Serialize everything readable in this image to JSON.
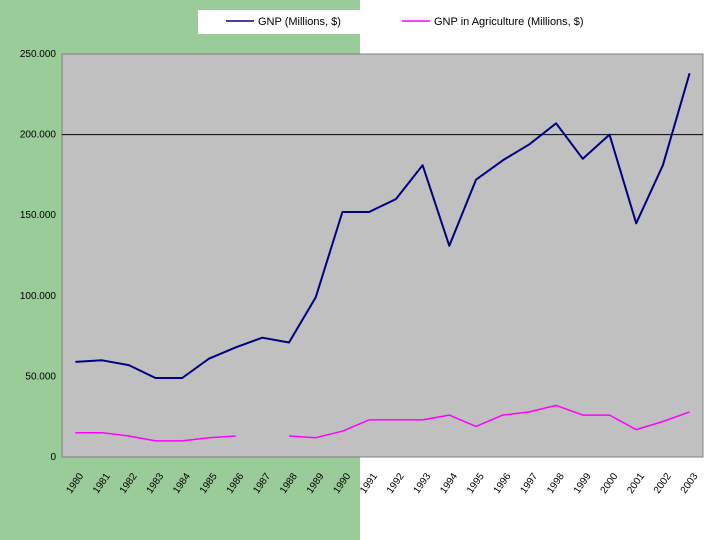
{
  "chart_data": {
    "type": "line",
    "title": "",
    "xlabel": "",
    "ylabel": "",
    "ylim": [
      0,
      250000
    ],
    "y_ticks": [
      "0",
      "50.000",
      "100.000",
      "150.000",
      "200.000",
      "250.000"
    ],
    "y_tick_values": [
      0,
      50000,
      100000,
      150000,
      200000,
      250000
    ],
    "grid": "horizontal line at 200.000",
    "legend_position": "top",
    "categories": [
      "1980",
      "1981",
      "1982",
      "1983",
      "1984",
      "1985",
      "1986",
      "1987",
      "1988",
      "1989",
      "1990",
      "1991",
      "1992",
      "1993",
      "1994",
      "1995",
      "1996",
      "1997",
      "1998",
      "1999",
      "2000",
      "2001",
      "2002",
      "2003"
    ],
    "series": [
      {
        "name": "GNP (Millions, $)",
        "color": "#000080",
        "values": [
          59000,
          60000,
          57000,
          49000,
          49000,
          61000,
          68000,
          74000,
          71000,
          99000,
          152000,
          152000,
          160000,
          181000,
          131000,
          172000,
          184000,
          194000,
          207000,
          185000,
          200000,
          145000,
          181000,
          238000
        ]
      },
      {
        "name": "GNP in Agriculture (Millions, $)",
        "color": "#ff00ff",
        "values": [
          15000,
          15000,
          13000,
          10000,
          10000,
          12000,
          13000,
          null,
          13000,
          12000,
          16000,
          23000,
          23000,
          23000,
          26000,
          19000,
          26000,
          28000,
          32000,
          26000,
          26000,
          17000,
          22000,
          28000
        ]
      }
    ]
  }
}
